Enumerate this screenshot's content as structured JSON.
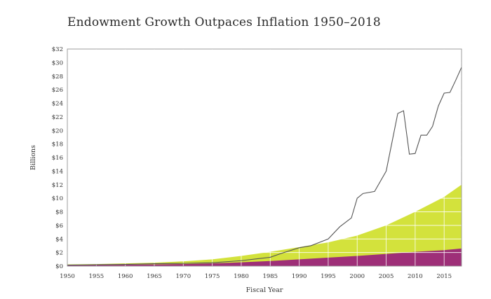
{
  "chart_data": {
    "type": "area",
    "title": "Endowment Growth Outpaces Inflation 1950–2018",
    "xlabel": "Fiscal Year",
    "ylabel": "Billions",
    "xlim": [
      1950,
      2018
    ],
    "ylim": [
      0,
      32
    ],
    "x_ticks": [
      1950,
      1955,
      1960,
      1965,
      1970,
      1975,
      1980,
      1985,
      1990,
      1995,
      2000,
      2005,
      2010,
      2015
    ],
    "y_ticks": [
      "$0",
      "$2",
      "$4",
      "$6",
      "$8",
      "$10",
      "$12",
      "$14",
      "$16",
      "$18",
      "$20",
      "$22",
      "$24",
      "$26",
      "$28",
      "$30",
      "$32"
    ],
    "grid": true,
    "series": [
      {
        "kind": "area",
        "color": "#9e2f78",
        "x": [
          1950,
          1955,
          1960,
          1965,
          1970,
          1975,
          1980,
          1985,
          1990,
          1995,
          2000,
          2005,
          2010,
          2015,
          2018
        ],
        "y": [
          0.1,
          0.15,
          0.2,
          0.25,
          0.3,
          0.4,
          0.55,
          0.75,
          1.0,
          1.25,
          1.5,
          1.8,
          2.1,
          2.35,
          2.6
        ]
      },
      {
        "kind": "area",
        "color": "#d3e23c",
        "x": [
          1950,
          1955,
          1960,
          1965,
          1970,
          1975,
          1980,
          1985,
          1990,
          1995,
          2000,
          2005,
          2010,
          2015,
          2018
        ],
        "y": [
          0.25,
          0.3,
          0.4,
          0.5,
          0.7,
          1.0,
          1.5,
          2.1,
          2.8,
          3.5,
          4.5,
          6.0,
          8.0,
          10.2,
          12.0
        ]
      },
      {
        "kind": "line",
        "color": "#555555",
        "x": [
          1950,
          1955,
          1960,
          1965,
          1970,
          1975,
          1980,
          1983,
          1985,
          1987,
          1990,
          1992,
          1995,
          1997,
          1999,
          2000,
          2001,
          2003,
          2005,
          2007,
          2008,
          2009,
          2010,
          2011,
          2012,
          2013,
          2014,
          2015,
          2016,
          2017,
          2018
        ],
        "y": [
          0.15,
          0.2,
          0.25,
          0.35,
          0.4,
          0.5,
          0.8,
          1.1,
          1.3,
          1.9,
          2.7,
          3.0,
          4.0,
          5.8,
          7.1,
          10.0,
          10.7,
          11.0,
          14.0,
          22.5,
          22.9,
          16.5,
          16.6,
          19.3,
          19.3,
          20.6,
          23.6,
          25.5,
          25.6,
          27.4,
          29.3
        ]
      }
    ]
  }
}
